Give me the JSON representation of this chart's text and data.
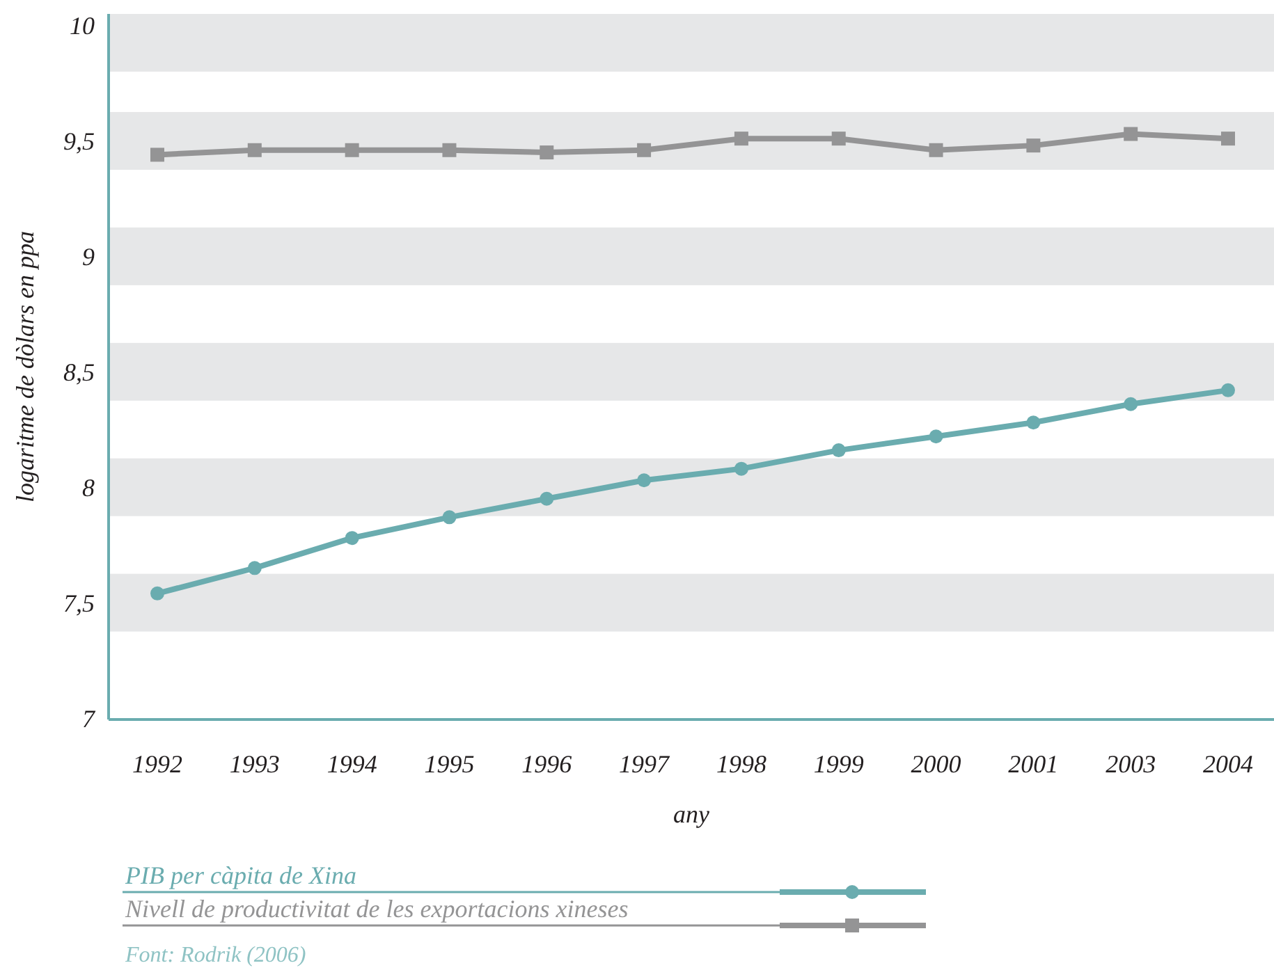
{
  "chart_data": {
    "type": "line",
    "xlabel": "any",
    "ylabel": "logaritme de dòlars en ppa",
    "categories": [
      "1992",
      "1993",
      "1994",
      "1995",
      "1996",
      "1997",
      "1998",
      "1999",
      "2000",
      "2001",
      "2003",
      "2004"
    ],
    "series": [
      {
        "name": "PIB per càpita de Xina",
        "color": "#6aacaf",
        "marker": "circle",
        "values": [
          7.54,
          7.65,
          7.78,
          7.87,
          7.95,
          8.03,
          8.08,
          8.16,
          8.22,
          8.28,
          8.36,
          8.42
        ]
      },
      {
        "name": "Nivell de productivitat de les exportacions xineses",
        "color": "#949495",
        "marker": "square",
        "values": [
          9.44,
          9.46,
          9.46,
          9.46,
          9.45,
          9.46,
          9.51,
          9.51,
          9.46,
          9.48,
          9.53,
          9.51
        ]
      }
    ],
    "ylim": [
      7,
      10.05
    ],
    "yticks": [
      7,
      {
        "value": 7.5,
        "label": "7,5"
      },
      8,
      {
        "value": 8.5,
        "label": "8,5"
      },
      9,
      {
        "value": 9.5,
        "label": "9,5"
      },
      10
    ],
    "bands": [
      {
        "axis": "y",
        "from": 7.375,
        "to": 7.625,
        "color": "#e6e7e8"
      },
      {
        "axis": "y",
        "from": 7.875,
        "to": 8.125,
        "color": "#e6e7e8"
      },
      {
        "axis": "y",
        "from": 8.375,
        "to": 8.625,
        "color": "#e6e7e8"
      },
      {
        "axis": "y",
        "from": 8.875,
        "to": 9.125,
        "color": "#e6e7e8"
      },
      {
        "axis": "y",
        "from": 9.375,
        "to": 9.625,
        "color": "#e6e7e8"
      },
      {
        "axis": "y",
        "from": 9.8,
        "to": 10.05,
        "color": "#e6e7e8"
      }
    ],
    "legend": "bottom",
    "annotations": [
      "Font: Rodrik (2006)"
    ]
  }
}
